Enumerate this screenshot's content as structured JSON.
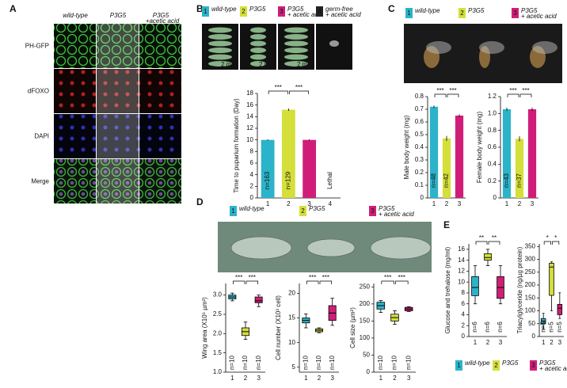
{
  "figure": {
    "colors": [
      "#2bb3c9",
      "#d4df3a",
      "#d01e78",
      "#222222"
    ],
    "A": {
      "label": "A",
      "columns": [
        "wild-type",
        "P3G5",
        "P3G5"
      ],
      "column_note": "+acetic acid",
      "rows": [
        "PH-GFP",
        "dFOXO",
        "DAPI",
        "Merge"
      ]
    },
    "B": {
      "label": "B",
      "images": [
        {
          "number": "1",
          "name": "wild-type"
        },
        {
          "number": "2",
          "name": "P3G5"
        },
        {
          "number": "3",
          "name": "P3G5",
          "note": "+ acetic acid"
        },
        {
          "number": "4",
          "name": "germ-free",
          "note": "+ acetic acid"
        }
      ],
      "scale_bar": "2 mm"
    },
    "C": {
      "label": "C",
      "images": [
        {
          "number": "1",
          "name": "wild-type"
        },
        {
          "number": "2",
          "name": "P3G5"
        },
        {
          "number": "3",
          "name": "P3G5",
          "note": "+ acetic acid"
        }
      ]
    },
    "D": {
      "label": "D",
      "images": [
        {
          "number": "1",
          "name": "wild-type"
        },
        {
          "number": "2",
          "name": "P3G5"
        },
        {
          "number": "3",
          "name": "P3G5",
          "note": "+ acetic acid"
        }
      ]
    },
    "E": {
      "label": "E",
      "legend": [
        {
          "number": "1",
          "name": "wild-type"
        },
        {
          "number": "2",
          "name": "P3G5"
        },
        {
          "number": "3",
          "name": "P3G5",
          "note": "+ acetic acid"
        }
      ]
    }
  },
  "chart_data": [
    {
      "type": "bar",
      "y_label": "Time to puparium formation (Day)",
      "categories": [
        "1",
        "2",
        "3",
        "4"
      ],
      "values": [
        10,
        15.2,
        10,
        null
      ],
      "errors": [
        0.1,
        0.2,
        0.1,
        null
      ],
      "colors": [
        "#2bb3c9",
        "#d4df3a",
        "#d01e78",
        "#222222"
      ],
      "ylim": [
        0,
        18
      ],
      "yticks": [
        0,
        2,
        4,
        6,
        8,
        10,
        12,
        14,
        16,
        18
      ],
      "annotations": [
        "n=163",
        "n=129",
        null,
        "Lethal"
      ],
      "significance": [
        "***",
        "***"
      ]
    },
    {
      "type": "bar",
      "y_label": "Male body weight (mg)",
      "categories": [
        "1",
        "2",
        "3"
      ],
      "values": [
        0.72,
        0.47,
        0.65
      ],
      "errors": [
        0.01,
        0.02,
        0.01
      ],
      "colors": [
        "#2bb3c9",
        "#d4df3a",
        "#d01e78"
      ],
      "ylim": [
        0,
        0.8
      ],
      "yticks": [
        0,
        0.1,
        0.2,
        0.3,
        0.4,
        0.5,
        0.6,
        0.7,
        0.8
      ],
      "annotations": [
        "n=48",
        "n=42",
        null
      ],
      "significance": [
        "***",
        "***"
      ]
    },
    {
      "type": "bar",
      "y_label": "Female body weight (mg)",
      "categories": [
        "1",
        "2",
        "3"
      ],
      "values": [
        1.05,
        0.7,
        1.05
      ],
      "errors": [
        0.02,
        0.03,
        0.02
      ],
      "colors": [
        "#2bb3c9",
        "#d4df3a",
        "#d01e78"
      ],
      "ylim": [
        0,
        1.2
      ],
      "yticks": [
        0,
        0.2,
        0.4,
        0.6,
        0.8,
        {
          "value": 1,
          "label": "1.0"
        },
        1.2
      ],
      "annotations": [
        "n=43",
        "n=37",
        null
      ],
      "significance": [
        "***",
        "***"
      ]
    },
    {
      "type": "box",
      "y_label": "Wing area (X10⁵ µm²)",
      "categories": [
        "1",
        "2",
        "3"
      ],
      "boxes": [
        {
          "min": 2.85,
          "q1": 2.9,
          "median": 2.95,
          "q3": 3.0,
          "max": 3.05
        },
        {
          "min": 1.85,
          "q1": 1.95,
          "median": 2.05,
          "q3": 2.15,
          "max": 2.3
        },
        {
          "min": 2.7,
          "q1": 2.8,
          "median": 2.85,
          "q3": 2.95,
          "max": 3.0
        }
      ],
      "colors": [
        "#2bb3c9",
        "#d4df3a",
        "#d01e78"
      ],
      "ylim": [
        1,
        3.3
      ],
      "yticks": [
        {
          "value": 1,
          "label": "1.0"
        },
        1.5,
        {
          "value": 2,
          "label": "2.0"
        },
        2.5,
        {
          "value": 3,
          "label": "3.0"
        }
      ],
      "annotations": [
        "n=10",
        "n=10",
        "n=10"
      ],
      "significance": [
        "***",
        "***"
      ]
    },
    {
      "type": "box",
      "y_label": "Cell number (X10³ cell)",
      "categories": [
        "1",
        "2",
        "3"
      ],
      "boxes": [
        {
          "min": 13,
          "q1": 14,
          "median": 14.5,
          "q3": 15,
          "max": 15.8
        },
        {
          "min": 12,
          "q1": 12.2,
          "median": 12.5,
          "q3": 12.8,
          "max": 13
        },
        {
          "min": 13.5,
          "q1": 14.5,
          "median": 16,
          "q3": 17.5,
          "max": 19
        }
      ],
      "colors": [
        "#2bb3c9",
        "#d4df3a",
        "#d01e78"
      ],
      "ylim": [
        4,
        22
      ],
      "yticks": [
        5,
        10,
        15,
        20
      ],
      "annotations": [
        "n=10",
        "n=10",
        "n=10"
      ],
      "significance": [
        "***",
        "***"
      ]
    },
    {
      "type": "box",
      "y_label": "Cell size (µm²)",
      "categories": [
        "1",
        "2",
        "3"
      ],
      "boxes": [
        {
          "min": 175,
          "q1": 185,
          "median": 195,
          "q3": 205,
          "max": 210
        },
        {
          "min": 140,
          "q1": 150,
          "median": 160,
          "q3": 170,
          "max": 180
        },
        {
          "min": 178,
          "q1": 180,
          "median": 185,
          "q3": 190,
          "max": 192
        }
      ],
      "colors": [
        "#2bb3c9",
        "#d4df3a",
        "#d01e78"
      ],
      "ylim": [
        0,
        260
      ],
      "yticks": [
        0,
        50,
        100,
        150,
        200,
        250
      ],
      "annotations": [
        "n=10",
        "n=10",
        "n=10"
      ],
      "significance": [
        "***",
        "***"
      ]
    },
    {
      "type": "box",
      "y_label": "Glucose and trehalose (mg/ml)",
      "categories": [
        "1",
        "2",
        "3"
      ],
      "boxes": [
        {
          "min": 6,
          "q1": 7.5,
          "median": 9,
          "q3": 11,
          "max": 13
        },
        {
          "min": 13,
          "q1": 14,
          "median": 14.5,
          "q3": 15.2,
          "max": 16
        },
        {
          "min": 6,
          "q1": 7,
          "median": 9,
          "q3": 11,
          "max": 13
        }
      ],
      "colors": [
        "#2bb3c9",
        "#d4df3a",
        "#d01e78"
      ],
      "ylim": [
        0,
        17
      ],
      "yticks": [
        0,
        2,
        4,
        6,
        8,
        10,
        12,
        14,
        16
      ],
      "annotations": [
        "n=6",
        "n=6",
        "n=6"
      ],
      "significance": [
        "**",
        "**"
      ]
    },
    {
      "type": "box",
      "y_label": "Triacylglyceride (ng/µg protein)",
      "categories": [
        "1",
        "2",
        "3"
      ],
      "boxes": [
        {
          "min": 30,
          "q1": 50,
          "median": 60,
          "q3": 70,
          "max": 90
        },
        {
          "min": 100,
          "q1": 160,
          "median": 270,
          "q3": 285,
          "max": 290
        },
        {
          "min": 70,
          "q1": 85,
          "median": 110,
          "q3": 125,
          "max": 170
        }
      ],
      "colors": [
        "#2bb3c9",
        "#d4df3a",
        "#d01e78"
      ],
      "ylim": [
        0,
        360
      ],
      "yticks": [
        0,
        50,
        100,
        150,
        200,
        250,
        300,
        350
      ],
      "annotations": [
        "n=5",
        "n=5",
        "n=5"
      ],
      "significance": [
        "*",
        "*"
      ]
    }
  ]
}
